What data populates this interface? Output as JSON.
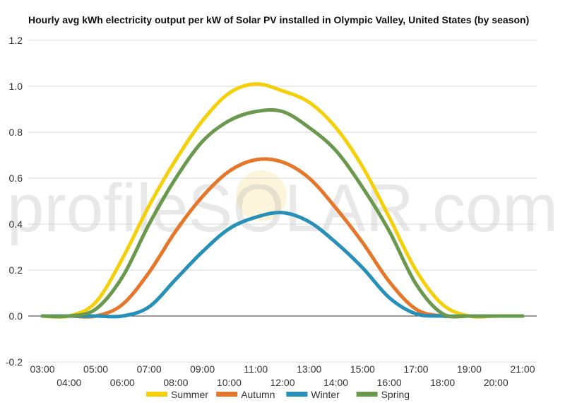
{
  "watermark": "profileSOLAR.com",
  "colors": {
    "grid": "#d9d9d9",
    "zero_line": "#333333",
    "summer": "#f5d00a",
    "autumn": "#e5762a",
    "winter": "#2690b9",
    "spring": "#6a994e"
  },
  "chart_data": {
    "type": "line",
    "title": "Hourly avg kWh electricity output per kW of Solar PV installed in Olympic Valley, United States (by season)",
    "xlabel": "",
    "ylabel": "",
    "x": [
      "03:00",
      "04:00",
      "05:00",
      "06:00",
      "07:00",
      "08:00",
      "09:00",
      "10:00",
      "11:00",
      "12:00",
      "13:00",
      "14:00",
      "15:00",
      "16:00",
      "17:00",
      "18:00",
      "19:00",
      "20:00",
      "21:00"
    ],
    "ylim": [
      -0.2,
      1.2
    ],
    "yticks": [
      "-0.2",
      "0.0",
      "0.2",
      "0.4",
      "0.6",
      "0.8",
      "1.0",
      "1.2"
    ],
    "grid": true,
    "legend_position": "bottom",
    "series": [
      {
        "name": "Summer",
        "color_key": "summer",
        "values": [
          0.0,
          0.0,
          0.06,
          0.25,
          0.48,
          0.68,
          0.85,
          0.97,
          1.01,
          0.98,
          0.93,
          0.82,
          0.65,
          0.43,
          0.2,
          0.05,
          0.0,
          0.0,
          0.0
        ]
      },
      {
        "name": "Autumn",
        "color_key": "autumn",
        "values": [
          0.0,
          0.0,
          0.0,
          0.05,
          0.19,
          0.37,
          0.52,
          0.63,
          0.68,
          0.67,
          0.6,
          0.47,
          0.32,
          0.15,
          0.03,
          0.0,
          0.0,
          0.0,
          0.0
        ]
      },
      {
        "name": "Winter",
        "color_key": "winter",
        "values": [
          0.0,
          0.0,
          0.0,
          0.0,
          0.04,
          0.16,
          0.28,
          0.38,
          0.43,
          0.45,
          0.41,
          0.32,
          0.21,
          0.08,
          0.01,
          0.0,
          0.0,
          0.0,
          0.0
        ]
      },
      {
        "name": "Spring",
        "color_key": "spring",
        "values": [
          0.0,
          0.0,
          0.03,
          0.17,
          0.4,
          0.6,
          0.76,
          0.85,
          0.89,
          0.89,
          0.82,
          0.72,
          0.56,
          0.37,
          0.14,
          0.01,
          0.0,
          0.0,
          0.0
        ]
      }
    ]
  }
}
